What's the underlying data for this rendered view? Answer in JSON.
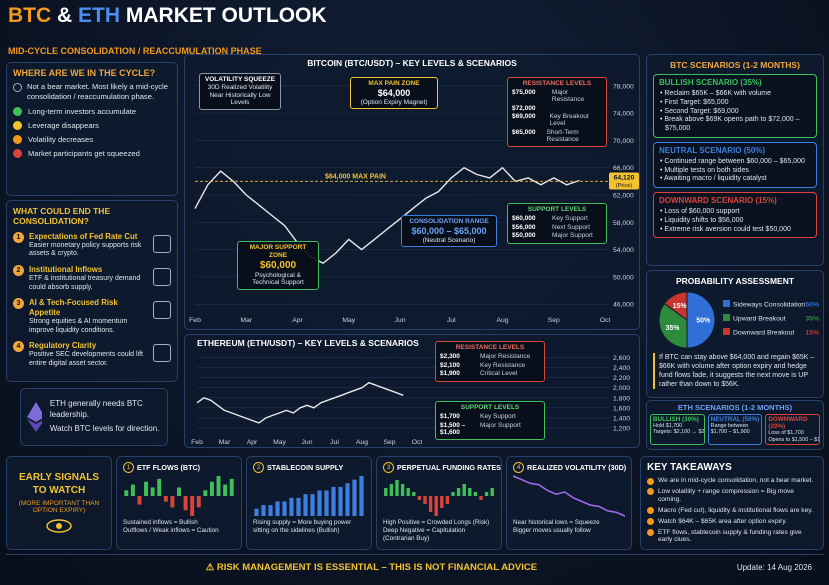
{
  "header": {
    "title_btc": "BTC",
    "title_amp": "&",
    "title_eth": "ETH",
    "title_rest": "MARKET OUTLOOK",
    "subtitle": "MID-CYCLE CONSOLIDATION / REACCUMULATION PHASE"
  },
  "cycle": {
    "heading": "WHERE ARE WE IN THE CYCLE?",
    "intro": "Not a bear market. Most likely a mid-cycle consolidation / reaccumulation phase.",
    "items": [
      "Long-term investors accumulate",
      "Leverage disappears",
      "Volatility decreases",
      "Market participants get squeezed"
    ]
  },
  "consolidation_end": {
    "heading": "WHAT COULD END THE CONSOLIDATION?",
    "items": [
      {
        "number": 1,
        "title": "Expectations of Fed Rate Cut",
        "text": "Easier monetary policy supports risk assets & crypto."
      },
      {
        "number": 2,
        "title": "Institutional Inflows",
        "text": "ETF & institutional treasury demand could absorb supply."
      },
      {
        "number": 3,
        "title": "AI & Tech-Focused Risk Appetite",
        "text": "Strong equities & AI momentum improve liquidity conditions."
      },
      {
        "number": 4,
        "title": "Regulatory Clarity",
        "text": "Positive SEC developments could lift entire digital asset sector."
      }
    ]
  },
  "eth_note": {
    "line1": "ETH generally needs BTC leadership.",
    "line2": "Watch BTC levels for direction."
  },
  "chart_data": [
    {
      "type": "line",
      "title": "BITCOIN (BTC/USDT) – KEY LEVELS & SCENARIOS",
      "color": "#e8e8e8",
      "categories": [
        "Feb",
        null,
        null,
        null,
        "Mar",
        null,
        null,
        null,
        "Apr",
        null,
        null,
        null,
        "May",
        null,
        null,
        null,
        "Jun",
        null,
        null,
        null,
        "Jul",
        null,
        null,
        null,
        "Aug",
        null,
        null,
        null,
        "Sep",
        null,
        null,
        null,
        "Oct"
      ],
      "values": [
        60000,
        63500,
        65500,
        64000,
        62000,
        60500,
        59000,
        57500,
        55000,
        53000,
        52000,
        53500,
        55500,
        54000,
        55500,
        57000,
        58500,
        60000,
        61500,
        62500,
        64500,
        66000,
        65000,
        64500,
        66000,
        64000,
        64500,
        63500,
        64500,
        63500,
        64120,
        null,
        null
      ],
      "ylim": [
        45000,
        79000
      ],
      "yticks": [
        {
          "value": 46000,
          "label": "46,000"
        },
        {
          "value": 50000,
          "label": "50,000"
        },
        {
          "value": 54000,
          "label": "54,000"
        },
        {
          "value": 58000,
          "label": "58,000"
        },
        {
          "value": 62000,
          "label": "62,000"
        },
        {
          "value": 66000,
          "label": "66,000"
        },
        {
          "value": 70000,
          "label": "70,000"
        },
        {
          "value": 74000,
          "label": "74,000"
        },
        {
          "value": 78000,
          "label": "78,000"
        }
      ],
      "grid": true,
      "reference_lines": [
        {
          "value": 64000,
          "label": "$64,000 MAX PAIN",
          "color": "#f2c230"
        }
      ],
      "price_tag": {
        "value": 64120,
        "label": "64,120",
        "sublabel": "(Price)"
      },
      "volatility_squeeze": {
        "title": "VOLATILITY SQUEEZE",
        "text": "30D Realized Volatility Near Historically Low Levels"
      },
      "max_pain_zone": {
        "title": "MAX PAIN ZONE",
        "value": "$64,000",
        "note": "(Option Expiry Magnet)"
      },
      "resistance_levels": {
        "title": "RESISTANCE LEVELS",
        "rows": [
          {
            "price": "$75,000",
            "label": "Major Resistance"
          },
          {
            "price": "$72,000"
          },
          {
            "price": "$69,000",
            "label": "Key Breakout Level"
          },
          {
            "price": "$65,000",
            "label": "Short-Term Resistance"
          }
        ]
      },
      "support_levels": {
        "title": "SUPPORT LEVELS",
        "rows": [
          {
            "price": "$60,000",
            "label": "Key Support"
          },
          {
            "price": "$56,000",
            "label": "Next Support"
          },
          {
            "price": "$50,000",
            "label": "Major Support"
          }
        ]
      },
      "consolidation_range": {
        "title": "CONSOLIDATION RANGE",
        "value": "$60,000 – $65,000",
        "note": "(Neutral Scenario)"
      },
      "major_support_zone": {
        "title": "MAJOR SUPPORT ZONE",
        "value": "$60,000",
        "note": "Psychological & Technical Support"
      }
    },
    {
      "type": "line",
      "title": "ETHEREUM (ETH/USDT) – KEY LEVELS & SCENARIOS",
      "color": "#e8e8e8",
      "categories": [
        "Feb",
        null,
        null,
        null,
        "Mar",
        null,
        null,
        null,
        "Apr",
        null,
        null,
        null,
        "May",
        null,
        null,
        null,
        "Jun",
        null,
        null,
        null,
        "Jul",
        null,
        null,
        null,
        "Aug",
        null,
        null,
        null,
        "Sep",
        null,
        null,
        null,
        "Oct"
      ],
      "values": [
        1700,
        1800,
        1750,
        1650,
        1550,
        1500,
        1450,
        1400,
        1350,
        1300,
        1400,
        1450,
        1500,
        1550,
        1500,
        1600,
        1650,
        1600,
        1700,
        1750,
        1800,
        1850,
        1900,
        1950,
        2000,
        2100,
        2050,
        2000,
        1950,
        1900,
        1850,
        null,
        null
      ],
      "ylim": [
        1100,
        2650
      ],
      "yticks": [
        {
          "value": 1200,
          "label": "1,200"
        },
        {
          "value": 1400,
          "label": "1,400"
        },
        {
          "value": 1600,
          "label": "1,600"
        },
        {
          "value": 1800,
          "label": "1,800"
        },
        {
          "value": 2000,
          "label": "2,000"
        },
        {
          "value": 2200,
          "label": "2,200"
        },
        {
          "value": 2400,
          "label": "2,400"
        },
        {
          "value": 2600,
          "label": "2,600"
        }
      ],
      "grid": true,
      "resistance_levels": {
        "title": "RESISTANCE LEVELS",
        "rows": [
          {
            "price": "$2,300",
            "label": "Major Resistance"
          },
          {
            "price": "$2,100",
            "label": "Key Resistance"
          },
          {
            "price": "$1,900",
            "label": "Critical Level"
          }
        ]
      },
      "support_levels": {
        "title": "SUPPORT LEVELS",
        "rows": [
          {
            "price": "$1,700",
            "label": "Key Support"
          },
          {
            "price": "$1,500 – $1,600",
            "label": "Major Support"
          }
        ]
      }
    },
    {
      "type": "pie",
      "title": "PROBABILITY ASSESSMENT",
      "categories": [
        "Sideways Consolidation",
        "Upward Breakout",
        "Downward Breakout"
      ],
      "values": [
        50,
        35,
        15
      ],
      "value_labels": [
        "50%",
        "35%",
        "15%"
      ],
      "colors": [
        "#2f6fd6",
        "#2e8b3e",
        "#c8352e"
      ],
      "note": "If BTC can stay above $64,000 and regain $65K – $66K with volume after option expiry and hedge fund flows fade, it suggests the next move is UP rather than down to $56K."
    },
    {
      "type": "bar",
      "number": 1,
      "title": "ETF FLOWS (BTC)",
      "positive_color": "#3fbf5a",
      "negative_color": "#d9443a",
      "values": [
        2,
        4,
        -3,
        5,
        3,
        6,
        -2,
        -4,
        3,
        -5,
        -7,
        -4,
        2,
        5,
        7,
        4,
        6
      ],
      "captions": [
        "Sustained inflows = Bullish",
        "Outflows / Weak inflows = Caution"
      ]
    },
    {
      "type": "bar",
      "number": 2,
      "title": "STABLECOIN SUPPLY",
      "positive_color": "#3d7fe0",
      "negative_color": "#3d7fe0",
      "values": [
        2,
        3,
        3,
        4,
        4,
        5,
        5,
        6,
        6,
        7,
        7,
        8,
        8,
        9,
        10,
        11
      ],
      "captions": [
        "Rising supply = More buying power sitting on the sidelines (Bullish)"
      ]
    },
    {
      "type": "bar",
      "number": 3,
      "title": "PERPETUAL FUNDING RATES",
      "positive_color": "#3fbf5a",
      "negative_color": "#d9443a",
      "values": [
        2,
        3,
        4,
        3,
        2,
        1,
        -1,
        -2,
        -4,
        -5,
        -3,
        -2,
        1,
        2,
        3,
        2,
        1,
        -1,
        1,
        2
      ],
      "captions": [
        "High Positive = Crowded Longs (Risk)",
        "Deep Negative = Capitulation (Contrarian Buy)"
      ]
    },
    {
      "type": "line",
      "number": 4,
      "title": "REALIZED VOLATILITY (30D)",
      "color": "#a36bf0",
      "values": [
        9,
        8.5,
        8,
        7.8,
        7,
        6.5,
        6.8,
        6,
        5.5,
        5,
        4.8,
        4.2,
        4,
        3.5
      ],
      "captions": [
        "Near historical lows = Squeeze",
        "Bigger moves usually follow"
      ]
    }
  ],
  "btc_scenarios": {
    "heading": "BTC SCENARIOS (1-2 MONTHS)",
    "scenarios": [
      {
        "title": "BULLISH SCENARIO (35%)",
        "color": "#3fbf5a",
        "bullets": [
          "Reclaim $65K – $66K with volume",
          "First Target: $65,000",
          "Second Target: $69,000",
          "Break above $69K opens path to $72,000 – $75,000"
        ]
      },
      {
        "title": "NEUTRAL SCENARIO (50%)",
        "color": "#3d7fe0",
        "bullets": [
          "Continued range between $60,000 – $65,000",
          "Multiple tests on both sides",
          "Awaiting macro / liquidity catalyst"
        ]
      },
      {
        "title": "DOWNWARD SCENARIO (15%)",
        "color": "#d9443a",
        "bullets": [
          "Loss of $60,000 support",
          "Liquidity shifts to $56,000",
          "Extreme risk aversion could test $50,000"
        ]
      }
    ]
  },
  "eth_scenarios": {
    "heading": "ETH SCENARIOS (1-2 MONTHS)",
    "scenarios": [
      {
        "title": "BULLISH (30%)",
        "color": "#3fbf5a",
        "bullets": [
          "Hold $1,700",
          "Targets: $2,100 → $2,300"
        ]
      },
      {
        "title": "NEUTRAL (50%)",
        "color": "#3d7fe0",
        "bullets": [
          "Range between",
          "$1,700 – $1,900"
        ]
      },
      {
        "title": "DOWNWARD (20%)",
        "color": "#d9443a",
        "bullets": [
          "Loss of $1,700",
          "Opens to $1,500 – $1,600"
        ]
      }
    ]
  },
  "early_signals": {
    "title": "EARLY SIGNALS TO WATCH",
    "subtitle": "(MORE IMPORTANT THAN OPTION EXPIRY)"
  },
  "key_takeaways": {
    "heading": "KEY TAKEAWAYS",
    "items": [
      "We are in mid-cycle consolidation, not a bear market.",
      "Low volatility + range compression = Big move coming.",
      "Macro (Fed cut), liquidity & institutional flows are key.",
      "Watch $64K – $65K area after option expiry.",
      "ETF flows, stablecoin supply & funding rates give early clues."
    ]
  },
  "footer": {
    "warning": "RISK MANAGEMENT IS ESSENTIAL – THIS IS NOT FINANCIAL ADVICE",
    "update": "Update: 14 Aug 2026"
  }
}
